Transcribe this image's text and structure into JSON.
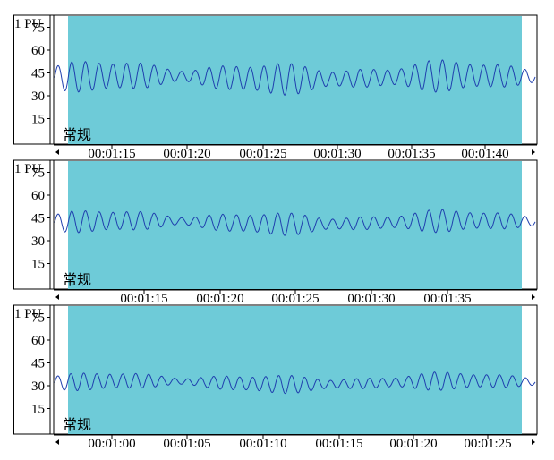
{
  "colors": {
    "shade": "#6ECBD8",
    "trace": "#1f3fae",
    "frame": "#000000"
  },
  "chart_data": [
    {
      "type": "line",
      "ylim": [
        0,
        80
      ],
      "y_unit": "1 PU",
      "ytick_labels": [
        "75",
        "60",
        "45",
        "30",
        "15"
      ],
      "yticks": [
        75,
        60,
        45,
        30,
        15
      ],
      "mode_label": "常规",
      "xtick_labels": [
        "00:01:15",
        "00:01:20",
        "00:01:25",
        "00:01:30",
        "00:01:35",
        "00:01:40"
      ],
      "trace": {
        "base": 42,
        "amp": 7,
        "cycles": 35
      }
    },
    {
      "type": "line",
      "ylim": [
        0,
        80
      ],
      "y_unit": "1 PU",
      "ytick_labels": [
        "75",
        "60",
        "45",
        "30",
        "15"
      ],
      "yticks": [
        75,
        60,
        45,
        30,
        15
      ],
      "mode_label": "常规",
      "xtick_labels": [
        "00:01:15",
        "00:01:20",
        "00:01:25",
        "00:01:30",
        "00:01:35"
      ],
      "trace": {
        "base": 42,
        "amp": 5,
        "cycles": 35
      }
    },
    {
      "type": "line",
      "ylim": [
        0,
        80
      ],
      "y_unit": "1 PU",
      "ytick_labels": [
        "75",
        "60",
        "45",
        "30",
        "15"
      ],
      "yticks": [
        75,
        60,
        45,
        30,
        15
      ],
      "mode_label": "常规",
      "xtick_labels": [
        "00:01:00",
        "00:01:05",
        "00:01:10",
        "00:01:15",
        "00:01:20",
        "00:01:25"
      ],
      "trace": {
        "base": 32,
        "amp": 4,
        "cycles": 37
      }
    }
  ]
}
